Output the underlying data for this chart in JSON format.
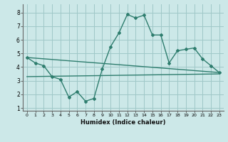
{
  "line1_x": [
    0,
    1,
    2,
    3,
    4,
    5,
    6,
    7,
    8,
    9,
    10,
    11,
    12,
    13,
    14,
    15,
    16,
    17,
    18,
    19,
    20,
    21,
    22,
    23
  ],
  "line1_y": [
    4.7,
    4.3,
    4.1,
    3.3,
    3.1,
    1.8,
    2.2,
    1.5,
    1.7,
    3.85,
    5.5,
    6.5,
    7.85,
    7.6,
    7.8,
    6.35,
    6.35,
    4.3,
    5.2,
    5.3,
    5.4,
    4.6,
    4.1,
    3.6
  ],
  "line2_x": [
    0,
    23
  ],
  "line2_y": [
    4.7,
    3.6
  ],
  "line3_x": [
    0,
    23
  ],
  "line3_y": [
    3.3,
    3.5
  ],
  "line_color": "#2e7d6e",
  "bg_color": "#cce8e8",
  "grid_color": "#9fc8c8",
  "xlabel": "Humidex (Indice chaleur)",
  "xlim": [
    -0.5,
    23.5
  ],
  "ylim": [
    0.8,
    8.6
  ],
  "yticks": [
    1,
    2,
    3,
    4,
    5,
    6,
    7,
    8
  ],
  "xticks": [
    0,
    1,
    2,
    3,
    4,
    5,
    6,
    7,
    8,
    9,
    10,
    11,
    12,
    13,
    14,
    15,
    16,
    17,
    18,
    19,
    20,
    21,
    22,
    23
  ]
}
